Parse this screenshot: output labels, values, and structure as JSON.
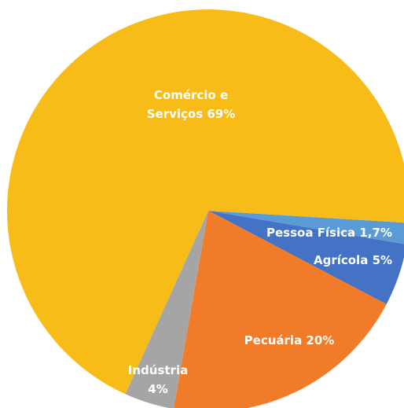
{
  "chart_data": {
    "type": "pie",
    "categories": [
      "Pessoa Física",
      "Agrícola",
      "Pecuária",
      "Indústria",
      "Comércio e Serviços"
    ],
    "values": [
      1.7,
      5,
      20,
      4,
      69
    ],
    "value_labels": [
      "1,7%",
      "5%",
      "20%",
      "4%",
      "69%"
    ],
    "colors": [
      "#5b9bd5",
      "#4472c4",
      "#f07c2a",
      "#a5a5a5",
      "#f7bc18"
    ]
  }
}
